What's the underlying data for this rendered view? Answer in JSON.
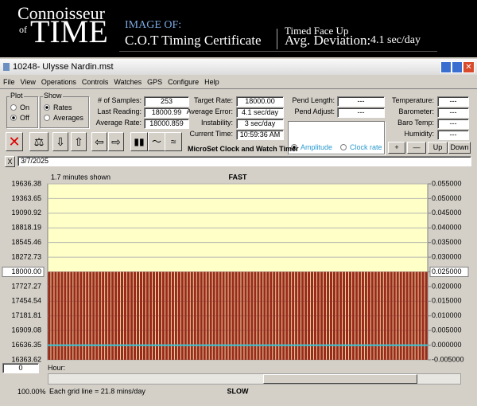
{
  "header": {
    "logo_top": "Connoisseur",
    "logo_of": "of",
    "logo_main": "TIME",
    "image_of": "IMAGE OF:",
    "certificate": "C.O.T Timing Certificate",
    "position": "Timed Face Up",
    "deviation_label": "Avg. Deviation:",
    "deviation_value": "4.1 sec/day"
  },
  "window": {
    "title": "10248- Ulysse Nardin.mst",
    "menu": [
      "File",
      "View",
      "Operations",
      "Controls",
      "Watches",
      "GPS",
      "Configure",
      "Help"
    ]
  },
  "panel": {
    "plot": {
      "title": "Plot",
      "options": [
        "On",
        "Off"
      ]
    },
    "show": {
      "title": "Show",
      "options": [
        "Rates",
        "Averages"
      ]
    },
    "fields": [
      {
        "label": "# of Samples:",
        "value": "253"
      },
      {
        "label": "Last Reading:",
        "value": "18000.99"
      },
      {
        "label": "Average Rate:",
        "value": "18000.859"
      },
      {
        "label": "Target Rate:",
        "value": "18000.00"
      },
      {
        "label": "Average Error:",
        "value": "4.1 sec/day"
      },
      {
        "label": "Instability:",
        "value": "3 sec/day"
      },
      {
        "label": "Current Time:",
        "value": "10:59:36 AM"
      },
      {
        "label": "Pend Length:",
        "value": "---"
      },
      {
        "label": "Pend Adjust:",
        "value": "---"
      },
      {
        "label": "Temperature:",
        "value": "---"
      },
      {
        "label": "Barometer:",
        "value": "---"
      },
      {
        "label": "Baro Temp:",
        "value": "---"
      },
      {
        "label": "Humidity:",
        "value": "---"
      }
    ],
    "product": "MicroSet Clock and Watch Timer",
    "radio": [
      "Amplitude",
      "Clock rate"
    ],
    "buttons": [
      "+",
      "—",
      "Up",
      "Down"
    ],
    "date": "3/7/2025"
  },
  "footer": {
    "hour_value": "0",
    "hour_label": "Hour:",
    "zoom": "100.00%"
  },
  "chart_data": {
    "type": "bar",
    "span_note": "1.7 minutes shown",
    "top_label": "FAST",
    "bottom_label": "SLOW",
    "grid_note": "Each grid line = 21.8 mins/day",
    "color": "#9a2a1a",
    "background": "#ffffc8",
    "grid": true,
    "highlighted_tick": 6,
    "values": [
      18001,
      18001,
      18001,
      18001,
      18001,
      18001,
      18001,
      18001,
      18001,
      18001,
      18001,
      18001,
      18001,
      18001,
      18001,
      18001,
      18001,
      18001,
      18001,
      18001,
      18001,
      18001,
      18001,
      18001,
      18001,
      18001,
      18001,
      18001,
      18001,
      18001,
      18001,
      18001,
      18001,
      18001,
      18001,
      18001,
      18001,
      18001,
      18001,
      18001,
      18001,
      18001,
      18001,
      18001,
      18001,
      18001,
      18001,
      18001,
      18001,
      18001,
      18001,
      18001,
      18001,
      18001,
      18001,
      18001,
      18001,
      18001,
      18001,
      18001,
      18001,
      18001,
      18001,
      18001,
      18001,
      18001,
      18001,
      18001,
      18001,
      18001,
      18001,
      18001,
      18001,
      18001,
      18001,
      18001,
      18001,
      18001,
      18001,
      18001,
      18001,
      18001,
      18001,
      18001,
      18001,
      18001,
      18001,
      18001,
      18001,
      18001,
      18001,
      18001,
      18001,
      18001,
      18001,
      18001,
      18001,
      18001,
      18001,
      18001,
      18001,
      18001,
      18001,
      18001,
      18001,
      18001,
      18001,
      18001,
      18001,
      18001,
      18001,
      18001,
      18001,
      18001,
      18001,
      18001,
      18001,
      18001,
      18001,
      18001
    ],
    "ylim": [
      16363.62,
      19636.38
    ],
    "yticks": [
      19636.38,
      19363.65,
      19090.92,
      18818.19,
      18545.46,
      18272.73,
      {
        "value": 18000,
        "label": "18000.00"
      },
      17727.27,
      17454.54,
      17181.81,
      16909.08,
      16636.35,
      16363.62
    ],
    "y2lim": [
      -0.005,
      0.055
    ],
    "y2ticks": [
      {
        "value": 0.055,
        "label": "0.055000"
      },
      {
        "value": 0.05,
        "label": "0.050000"
      },
      {
        "value": 0.045,
        "label": "0.045000"
      },
      {
        "value": 0.04,
        "label": "0.040000"
      },
      {
        "value": 0.035,
        "label": "0.035000"
      },
      {
        "value": 0.03,
        "label": "0.030000"
      },
      {
        "value": 0.025,
        "label": "0.025000"
      },
      {
        "value": 0.02,
        "label": "0.020000"
      },
      {
        "value": 0.015,
        "label": "0.015000"
      },
      {
        "value": 0.01,
        "label": "0.010000"
      },
      {
        "value": 0.005,
        "label": "0.005000"
      },
      {
        "value": 0,
        "label": "0.000000"
      },
      {
        "value": -0.005,
        "label": "-0.005000"
      }
    ],
    "reference_line": {
      "axis": "y2",
      "value": 0,
      "color": "#38c8d8"
    }
  }
}
